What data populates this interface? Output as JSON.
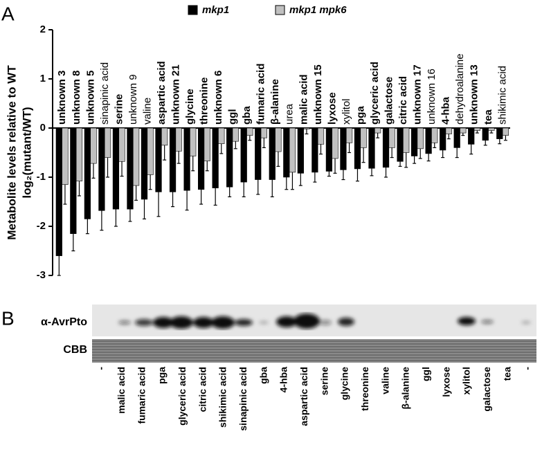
{
  "panels": {
    "a": "A",
    "b": "B"
  },
  "chart_data": {
    "type": "bar",
    "ylabel": [
      "Metabolite levels relative to WT",
      "log₂(mutant/WT)"
    ],
    "categories": [
      "unknown 3",
      "unknown 8",
      "unknown 5",
      "sinapinic acid",
      "serine",
      "unknown 9",
      "valine",
      "aspartic acid",
      "unknown 21",
      "glycine",
      "threonine",
      "unknown 6",
      "ggl",
      "gba",
      "fumaric acid",
      "β-alanine",
      "urea",
      "malic acid",
      "unknown 15",
      "lyxose",
      "xylitol",
      "pga",
      "glyceric acid",
      "galactose",
      "citric acid",
      "unknown 17",
      "unknown 16",
      "4-hba",
      "dehydroalanine",
      "unknown 13",
      "tea",
      "shikimic acid"
    ],
    "bold": [
      true,
      true,
      true,
      false,
      true,
      false,
      false,
      true,
      true,
      true,
      true,
      true,
      true,
      true,
      true,
      true,
      false,
      true,
      true,
      true,
      false,
      true,
      true,
      true,
      true,
      true,
      false,
      true,
      false,
      true,
      true,
      false
    ],
    "series": [
      {
        "name": "mkp1",
        "color": "#000000",
        "values": [
          -2.6,
          -2.15,
          -1.85,
          -1.68,
          -1.65,
          -1.65,
          -1.45,
          -1.3,
          -1.3,
          -1.27,
          -1.25,
          -1.22,
          -1.2,
          -1.1,
          -1.05,
          -1.05,
          -1.0,
          -0.92,
          -0.9,
          -0.88,
          -0.85,
          -0.83,
          -0.82,
          -0.8,
          -0.68,
          -0.57,
          -0.52,
          -0.45,
          -0.4,
          -0.33,
          -0.25,
          -0.22
        ],
        "errors": [
          0.4,
          0.35,
          0.3,
          0.4,
          0.35,
          0.25,
          0.4,
          0.5,
          0.3,
          0.4,
          0.3,
          0.35,
          0.2,
          0.3,
          0.3,
          0.35,
          0.25,
          0.25,
          0.2,
          0.1,
          0.2,
          0.25,
          0.15,
          0.2,
          0.1,
          0.15,
          0.15,
          0.15,
          0.2,
          0.2,
          0.1,
          0.1
        ]
      },
      {
        "name": "mkp1 mpk6",
        "color": "#c0c0c0",
        "values": [
          -1.15,
          -1.08,
          -0.72,
          -0.6,
          -0.68,
          -1.17,
          -0.95,
          -0.35,
          -0.47,
          -0.57,
          -0.67,
          -0.32,
          -0.27,
          -0.15,
          -0.2,
          -0.48,
          -0.9,
          -0.02,
          -0.33,
          -0.62,
          -0.3,
          -0.4,
          -0.1,
          -0.4,
          -0.5,
          -0.42,
          -0.3,
          -0.12,
          -0.1,
          -0.05,
          -0.05,
          -0.15
        ],
        "errors": [
          0.4,
          0.3,
          0.3,
          0.4,
          0.3,
          0.3,
          0.3,
          0.3,
          0.25,
          0.3,
          0.2,
          0.2,
          0.15,
          0.1,
          0.2,
          0.3,
          0.35,
          0.1,
          0.2,
          0.3,
          0.2,
          0.3,
          0.1,
          0.2,
          0.3,
          0.2,
          0.1,
          0.1,
          0.05,
          0.05,
          0.05,
          0.1
        ]
      }
    ],
    "ylim": [
      -3,
      2
    ],
    "yticks": [
      2,
      1,
      0,
      -1,
      -2,
      -3
    ]
  },
  "blot": {
    "rows": [
      "α-AvrPto",
      "CBB"
    ],
    "lanes": [
      "-",
      "malic acid",
      "fumaric  acid",
      "pga",
      "glyceric acid",
      "citric acid",
      "shikimic acid",
      "sinapinic acid",
      "gba",
      "4-hba",
      "aspartic acid",
      "serine",
      "glycine",
      "threonine",
      "valine",
      "β-alanine",
      "ggl",
      "lyxose",
      "xylitol",
      "galactose",
      "tea",
      "-"
    ]
  }
}
